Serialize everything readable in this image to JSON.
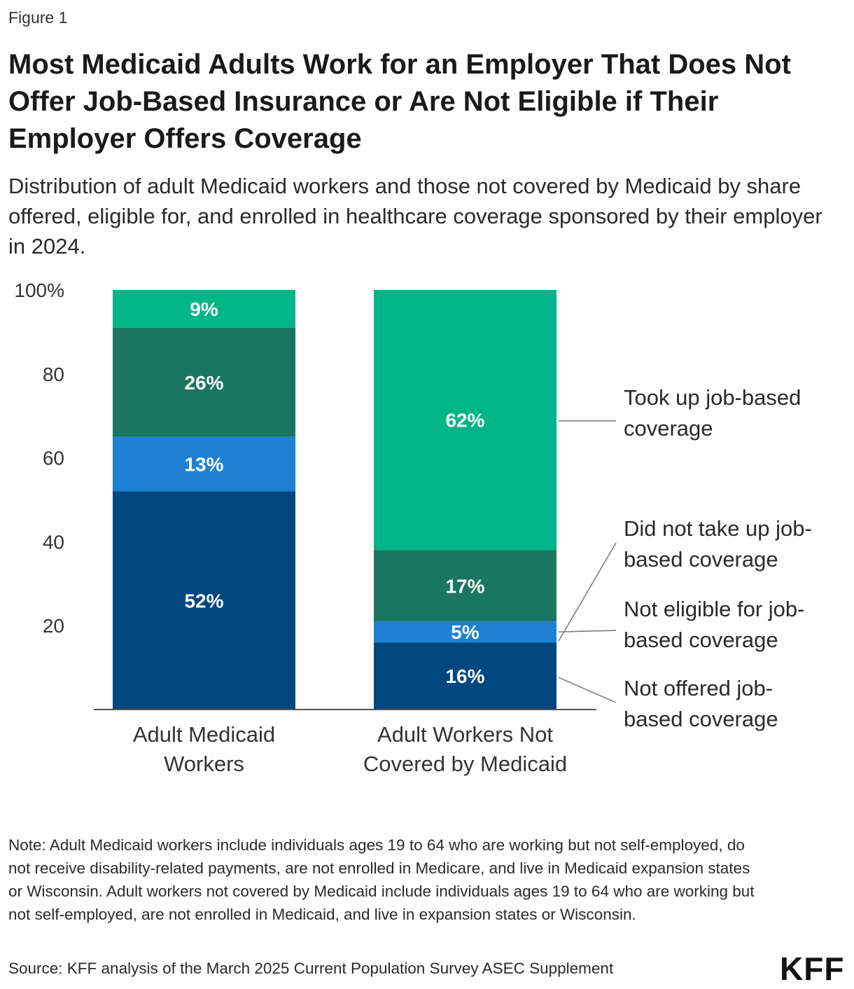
{
  "figure_label": "Figure 1",
  "title": "Most Medicaid Adults Work for an Employer That Does Not Offer Job-Based Insurance or Are Not Eligible if Their Employer Offers Coverage",
  "subtitle": "Distribution of adult Medicaid workers and those not covered by Medicaid by share offered, eligible for, and enrolled in healthcare coverage sponsored by their employer in 2024.",
  "note": "Note: Adult Medicaid workers include individuals ages 19 to 64 who are working but not self-employed, do not receive disability-related payments, are not enrolled in Medicare, and live in Medicaid expansion states or Wisconsin. Adult workers not covered by Medicaid include individuals ages 19 to 64 who are working but not self-employed, are not enrolled in Medicaid, and live in expansion states or Wisconsin.",
  "source": "Source: KFF analysis of the March 2025 Current Population Survey ASEC Supplement",
  "logo": "KFF",
  "chart_data": {
    "type": "bar",
    "stacked": true,
    "categories": [
      [
        "Adult Medicaid",
        "Workers"
      ],
      [
        "Adult Workers Not",
        "Covered by Medicaid"
      ]
    ],
    "series": [
      {
        "name": "Not offered job-based coverage",
        "label_lines": [
          "Not offered job-",
          "based coverage"
        ],
        "color": "#00467f",
        "values": [
          52,
          16
        ]
      },
      {
        "name": "Not eligible for job-based coverage",
        "label_lines": [
          "Not eligible for job-",
          "based coverage"
        ],
        "color": "#1e80d3",
        "values": [
          13,
          5
        ]
      },
      {
        "name": "Did not take up job-based coverage",
        "label_lines": [
          "Did not take up job-",
          "based coverage"
        ],
        "color": "#1b7661",
        "values": [
          26,
          17
        ]
      },
      {
        "name": "Took up job-based coverage",
        "label_lines": [
          "Took up job-based",
          "coverage"
        ],
        "color": "#00b587",
        "values": [
          9,
          62
        ]
      }
    ],
    "data_labels": [
      [
        "52%",
        "13%",
        "26%",
        "9%"
      ],
      [
        "16%",
        "5%",
        "17%",
        "62%"
      ]
    ],
    "yticks": [
      {
        "value": 100,
        "label": "100%"
      },
      {
        "value": 80,
        "label": "80"
      },
      {
        "value": 60,
        "label": "60"
      },
      {
        "value": 40,
        "label": "40"
      },
      {
        "value": 20,
        "label": "20"
      }
    ],
    "ylim": [
      0,
      100
    ],
    "grid": false,
    "legend": "right, labels connected to segments of second bar"
  }
}
